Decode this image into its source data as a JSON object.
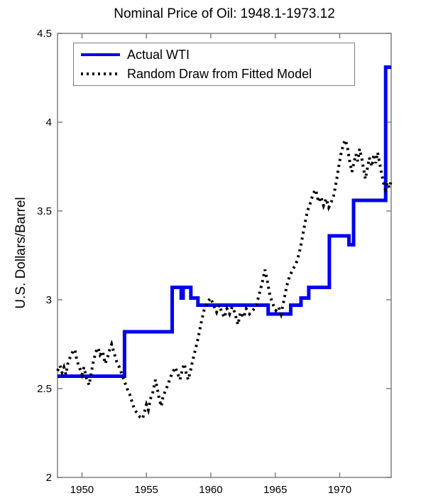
{
  "chart_data": {
    "type": "line",
    "title": "Nominal Price of Oil: 1948.1-1973.12",
    "xlabel": "",
    "ylabel": "U.S. Dollars/Barrel",
    "xlim": [
      1948.1,
      1974.0
    ],
    "ylim": [
      2.0,
      4.5
    ],
    "xticks": [
      1950,
      1955,
      1960,
      1965,
      1970
    ],
    "xticklabels": [
      "1950",
      "1955",
      "1960",
      "1965",
      "1970"
    ],
    "yticks": [
      2,
      2.5,
      3,
      3.5,
      4,
      4.5
    ],
    "yticklabels": [
      "2",
      "2.5",
      "3",
      "3.5",
      "4",
      "4.5"
    ],
    "grid": false,
    "legend_position": "top-left",
    "axis_color": "#808080",
    "text_color": "#000000",
    "background_color": "#FFFFFF",
    "series": [
      {
        "name": "Actual WTI",
        "line": "solid",
        "color": "#0000EE",
        "width": 5,
        "step": true,
        "points": [
          [
            1948.1,
            2.57
          ],
          [
            1953.3,
            2.82
          ],
          [
            1957.0,
            3.07
          ],
          [
            1957.7,
            3.01
          ],
          [
            1957.85,
            3.07
          ],
          [
            1958.45,
            3.01
          ],
          [
            1959.0,
            2.97
          ],
          [
            1964.45,
            2.92
          ],
          [
            1966.2,
            2.97
          ],
          [
            1967.0,
            3.01
          ],
          [
            1967.6,
            3.07
          ],
          [
            1969.2,
            3.36
          ],
          [
            1970.72,
            3.31
          ],
          [
            1971.08,
            3.56
          ],
          [
            1973.57,
            4.31
          ]
        ]
      },
      {
        "name": "Random Draw from Fitted Model",
        "line": "dotted",
        "color": "#000000",
        "width": 4,
        "step": false,
        "points": [
          [
            1948.1,
            2.6
          ],
          [
            1948.3,
            2.63
          ],
          [
            1948.45,
            2.59
          ],
          [
            1948.6,
            2.62
          ],
          [
            1948.75,
            2.58
          ],
          [
            1948.9,
            2.64
          ],
          [
            1949.1,
            2.68
          ],
          [
            1949.3,
            2.71
          ],
          [
            1949.45,
            2.72
          ],
          [
            1949.6,
            2.66
          ],
          [
            1949.8,
            2.62
          ],
          [
            1950.0,
            2.58
          ],
          [
            1950.15,
            2.62
          ],
          [
            1950.35,
            2.56
          ],
          [
            1950.55,
            2.52
          ],
          [
            1950.75,
            2.6
          ],
          [
            1950.9,
            2.66
          ],
          [
            1951.1,
            2.71
          ],
          [
            1951.25,
            2.73
          ],
          [
            1951.4,
            2.69
          ],
          [
            1951.6,
            2.71
          ],
          [
            1951.8,
            2.64
          ],
          [
            1952.0,
            2.68
          ],
          [
            1952.15,
            2.72
          ],
          [
            1952.3,
            2.75
          ],
          [
            1952.5,
            2.7
          ],
          [
            1952.7,
            2.65
          ],
          [
            1952.9,
            2.62
          ],
          [
            1953.1,
            2.58
          ],
          [
            1953.3,
            2.54
          ],
          [
            1953.5,
            2.5
          ],
          [
            1953.7,
            2.47
          ],
          [
            1953.9,
            2.42
          ],
          [
            1954.1,
            2.38
          ],
          [
            1954.3,
            2.36
          ],
          [
            1954.5,
            2.34
          ],
          [
            1954.7,
            2.33
          ],
          [
            1954.85,
            2.37
          ],
          [
            1955.0,
            2.41
          ],
          [
            1955.15,
            2.38
          ],
          [
            1955.3,
            2.44
          ],
          [
            1955.5,
            2.48
          ],
          [
            1955.7,
            2.55
          ],
          [
            1955.85,
            2.5
          ],
          [
            1956.0,
            2.44
          ],
          [
            1956.15,
            2.4
          ],
          [
            1956.3,
            2.46
          ],
          [
            1956.5,
            2.49
          ],
          [
            1956.7,
            2.53
          ],
          [
            1956.9,
            2.57
          ],
          [
            1957.1,
            2.6
          ],
          [
            1957.25,
            2.62
          ],
          [
            1957.45,
            2.58
          ],
          [
            1957.6,
            2.55
          ],
          [
            1957.8,
            2.61
          ],
          [
            1957.95,
            2.64
          ],
          [
            1958.1,
            2.58
          ],
          [
            1958.25,
            2.55
          ],
          [
            1958.45,
            2.61
          ],
          [
            1958.6,
            2.66
          ],
          [
            1958.8,
            2.72
          ],
          [
            1959.0,
            2.78
          ],
          [
            1959.25,
            2.87
          ],
          [
            1959.5,
            2.95
          ],
          [
            1959.75,
            2.99
          ],
          [
            1960.0,
            3.01
          ],
          [
            1960.2,
            2.97
          ],
          [
            1960.45,
            2.93
          ],
          [
            1960.65,
            2.97
          ],
          [
            1960.85,
            2.93
          ],
          [
            1961.05,
            2.9
          ],
          [
            1961.25,
            2.95
          ],
          [
            1961.45,
            2.92
          ],
          [
            1961.65,
            2.96
          ],
          [
            1961.85,
            2.93
          ],
          [
            1962.1,
            2.86
          ],
          [
            1962.3,
            2.93
          ],
          [
            1962.55,
            2.9
          ],
          [
            1962.75,
            2.95
          ],
          [
            1963.0,
            2.92
          ],
          [
            1963.25,
            2.94
          ],
          [
            1963.5,
            2.96
          ],
          [
            1963.75,
            3.03
          ],
          [
            1964.0,
            3.1
          ],
          [
            1964.2,
            3.17
          ],
          [
            1964.4,
            3.1
          ],
          [
            1964.6,
            3.02
          ],
          [
            1964.85,
            2.97
          ],
          [
            1965.05,
            2.94
          ],
          [
            1965.25,
            2.96
          ],
          [
            1965.45,
            2.92
          ],
          [
            1965.65,
            2.99
          ],
          [
            1965.9,
            3.08
          ],
          [
            1966.1,
            3.13
          ],
          [
            1966.35,
            3.17
          ],
          [
            1966.6,
            3.2
          ],
          [
            1966.85,
            3.26
          ],
          [
            1967.05,
            3.33
          ],
          [
            1967.25,
            3.41
          ],
          [
            1967.5,
            3.5
          ],
          [
            1967.75,
            3.55
          ],
          [
            1967.95,
            3.6
          ],
          [
            1968.15,
            3.62
          ],
          [
            1968.35,
            3.55
          ],
          [
            1968.55,
            3.58
          ],
          [
            1968.75,
            3.53
          ],
          [
            1968.95,
            3.57
          ],
          [
            1969.15,
            3.52
          ],
          [
            1969.35,
            3.55
          ],
          [
            1969.55,
            3.59
          ],
          [
            1969.75,
            3.67
          ],
          [
            1969.95,
            3.76
          ],
          [
            1970.1,
            3.82
          ],
          [
            1970.3,
            3.88
          ],
          [
            1970.45,
            3.9
          ],
          [
            1970.6,
            3.86
          ],
          [
            1970.8,
            3.77
          ],
          [
            1970.95,
            3.72
          ],
          [
            1971.1,
            3.77
          ],
          [
            1971.25,
            3.82
          ],
          [
            1971.4,
            3.78
          ],
          [
            1971.55,
            3.85
          ],
          [
            1971.7,
            3.8
          ],
          [
            1971.85,
            3.74
          ],
          [
            1972.0,
            3.68
          ],
          [
            1972.15,
            3.74
          ],
          [
            1972.3,
            3.8
          ],
          [
            1972.5,
            3.75
          ],
          [
            1972.65,
            3.82
          ],
          [
            1972.8,
            3.77
          ],
          [
            1972.95,
            3.83
          ],
          [
            1973.1,
            3.77
          ],
          [
            1973.25,
            3.71
          ],
          [
            1973.4,
            3.66
          ],
          [
            1973.55,
            3.62
          ],
          [
            1973.7,
            3.66
          ],
          [
            1973.85,
            3.63
          ],
          [
            1974.0,
            3.67
          ]
        ]
      }
    ]
  }
}
